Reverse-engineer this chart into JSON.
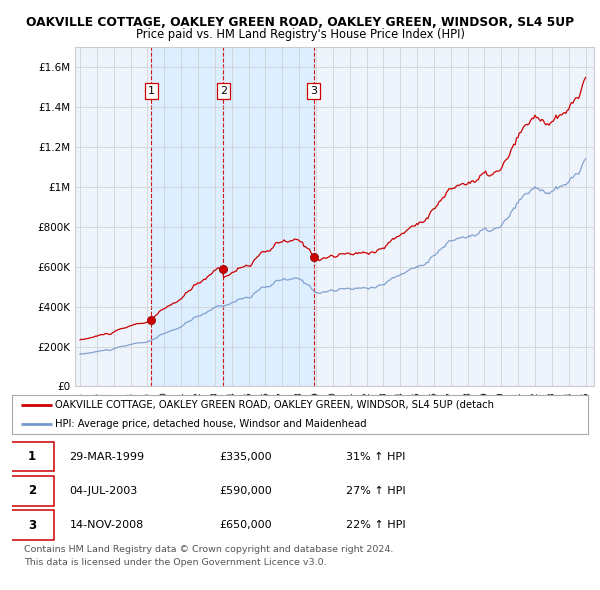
{
  "title": "OAKVILLE COTTAGE, OAKLEY GREEN ROAD, OAKLEY GREEN, WINDSOR, SL4 5UP",
  "subtitle": "Price paid vs. HM Land Registry's House Price Index (HPI)",
  "legend_line1": "OAKVILLE COTTAGE, OAKLEY GREEN ROAD, OAKLEY GREEN, WINDSOR, SL4 5UP (detach",
  "legend_line2": "HPI: Average price, detached house, Windsor and Maidenhead",
  "footer1": "Contains HM Land Registry data © Crown copyright and database right 2024.",
  "footer2": "This data is licensed under the Open Government Licence v3.0.",
  "sales": [
    {
      "num": 1,
      "date": "29-MAR-1999",
      "price": "£335,000",
      "pct": "31% ↑ HPI"
    },
    {
      "num": 2,
      "date": "04-JUL-2003",
      "price": "£590,000",
      "pct": "27% ↑ HPI"
    },
    {
      "num": 3,
      "date": "14-NOV-2008",
      "price": "£650,000",
      "pct": "22% ↑ HPI"
    }
  ],
  "sale_years": [
    1999.23,
    2003.5,
    2008.87
  ],
  "sale_prices": [
    335000,
    590000,
    650000
  ],
  "ylim": [
    0,
    1700000
  ],
  "yticks": [
    0,
    200000,
    400000,
    600000,
    800000,
    1000000,
    1200000,
    1400000,
    1600000
  ],
  "ytick_labels": [
    "£0",
    "£200K",
    "£400K",
    "£600K",
    "£800K",
    "£1M",
    "£1.2M",
    "£1.4M",
    "£1.6M"
  ],
  "red_color": "#cc0000",
  "blue_color": "#7799cc",
  "shade_color": "#ddeeff",
  "vline_color": "#cc0000",
  "grid_color": "#cccccc",
  "bg_color": "#ffffff",
  "chart_bg": "#eef4fb",
  "title_fontsize": 9.0,
  "subtitle_fontsize": 8.5
}
